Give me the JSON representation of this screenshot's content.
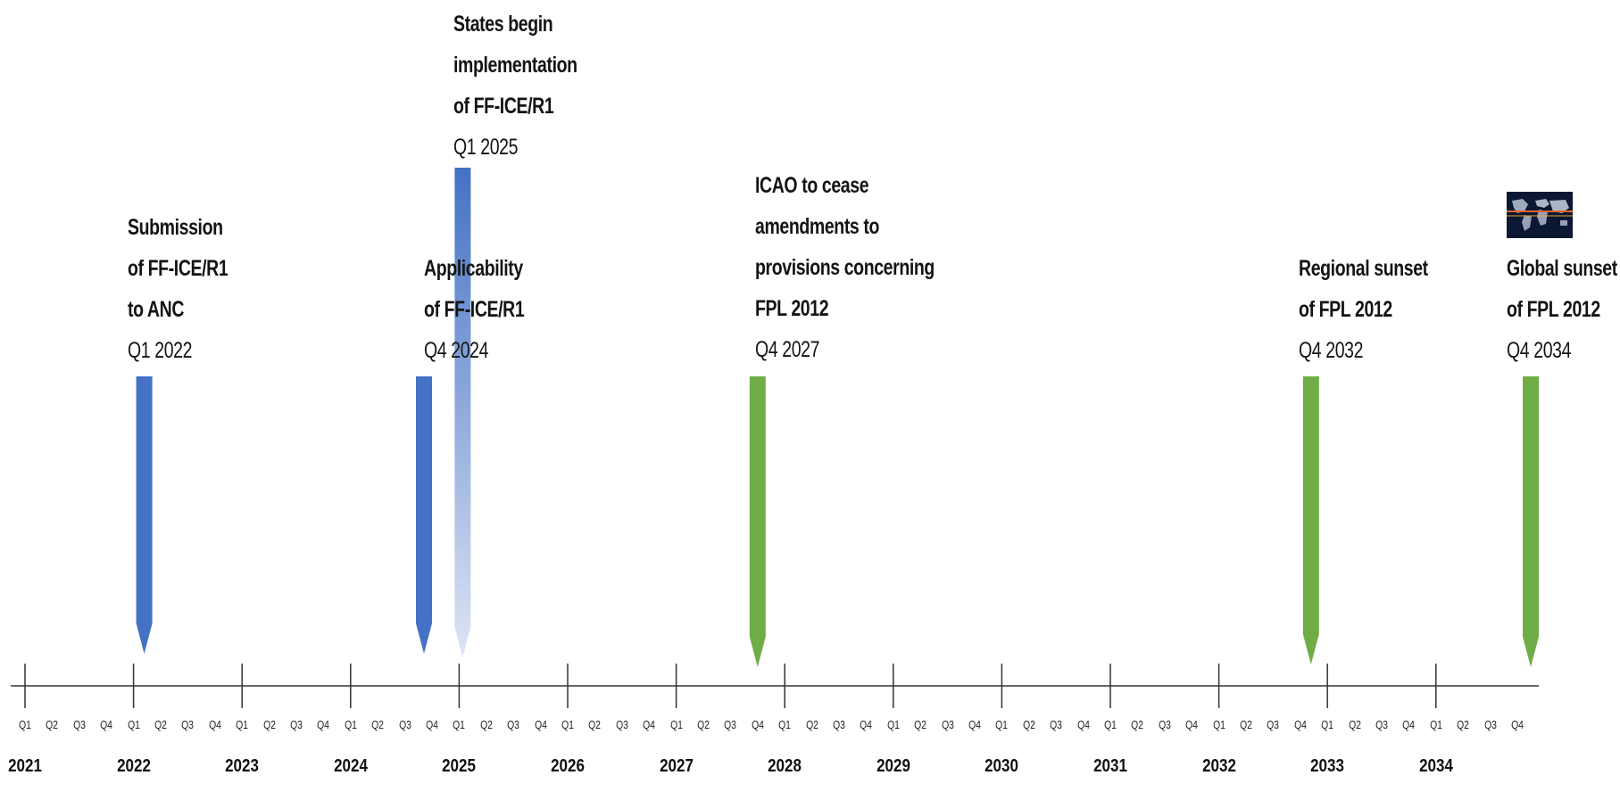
{
  "timeline": {
    "years": [
      "2021",
      "2022",
      "2023",
      "2024",
      "2025",
      "2026",
      "2027",
      "2028",
      "2029",
      "2030",
      "2031",
      "2032",
      "2033",
      "2034"
    ],
    "quarter_labels": [
      "Q1",
      "Q2",
      "Q3",
      "Q4"
    ],
    "milestones": [
      {
        "id": "submission",
        "lines": [
          "Submission",
          "of FF-ICE/R1",
          "to ANC"
        ],
        "date": "Q1 2022",
        "year": "2022",
        "quarter": "Q1",
        "color": "#4472c4"
      },
      {
        "id": "applicability",
        "lines": [
          "Applicability",
          "of FF-ICE/R1"
        ],
        "date": "Q4 2024",
        "year": "2024",
        "quarter": "Q4",
        "color": "#4472c4"
      },
      {
        "id": "states-begin",
        "lines": [
          "States begin",
          "implementation",
          "of FF-ICE/R1"
        ],
        "date": "Q1 2025",
        "year": "2025",
        "quarter": "Q1",
        "color": "#4472c4",
        "style": "fade"
      },
      {
        "id": "icao-cease",
        "lines": [
          "ICAO to cease",
          "amendments to",
          "provisions concerning",
          "FPL 2012"
        ],
        "date": "Q4 2027",
        "year": "2027",
        "quarter": "Q4",
        "color": "#70ad47"
      },
      {
        "id": "regional-sunset",
        "lines": [
          "Regional sunset",
          "of FPL 2012"
        ],
        "date": "Q4 2032",
        "year": "2032",
        "quarter": "Q4",
        "color": "#70ad47"
      },
      {
        "id": "global-sunset",
        "lines": [
          "Global sunset",
          "of FPL 2012"
        ],
        "date": "Q4 2034",
        "year": "2034",
        "quarter": "Q4",
        "color": "#70ad47"
      }
    ],
    "colors": {
      "axis": "#333333",
      "blue": "#4472c4",
      "green": "#70ad47",
      "fade_top": "#4472c4",
      "fade_bottom": "#dde5f4"
    },
    "icons": {
      "globe_thumbnail": "world-map-thumbnail-icon"
    }
  }
}
